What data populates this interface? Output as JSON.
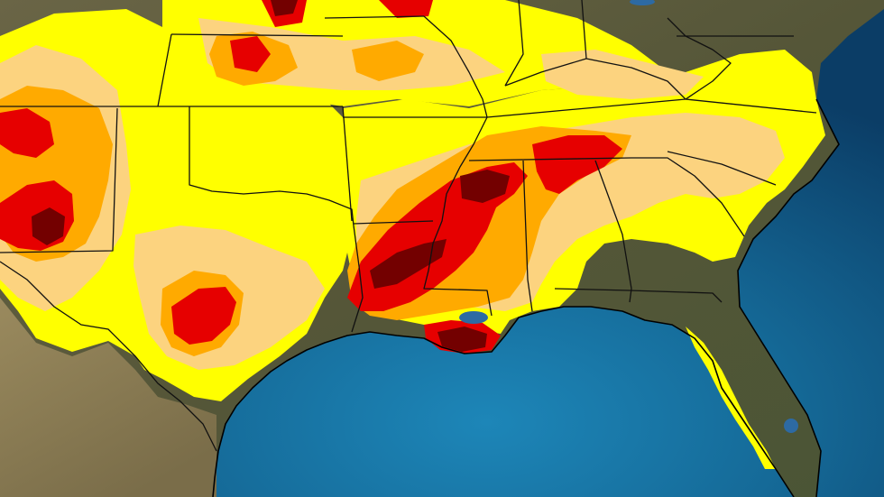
{
  "map": {
    "region": "",
    "legend_labels": []
  },
  "colors": {
    "ocean_deep": "#0b3d66",
    "ocean_shelf": "#1f7fb0",
    "land_terrain": "#5c5a3a",
    "land_desert": "#8f8259",
    "drought_abnormally_dry": "#ffff00",
    "drought_moderate": "#fcd37f",
    "drought_severe": "#ffaa00",
    "drought_extreme": "#e60000",
    "drought_exceptional": "#730000",
    "borders": "#111111",
    "lake": "#2d6aa3"
  },
  "layers": [
    "ocean",
    "land",
    "abnormally-dry",
    "moderate-drought",
    "severe-drought",
    "extreme-drought",
    "exceptional-drought",
    "state-borders",
    "coastline"
  ]
}
